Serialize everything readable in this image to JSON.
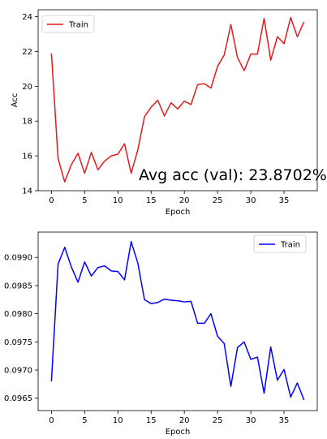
{
  "chart_data": [
    {
      "type": "line",
      "xlabel": "Epoch",
      "ylabel": "Acc",
      "xlim": [
        -2,
        40
      ],
      "ylim": [
        14,
        24.4
      ],
      "xticks": [
        0,
        5,
        10,
        15,
        20,
        25,
        30,
        35
      ],
      "yticks": [
        14,
        16,
        18,
        20,
        22,
        24
      ],
      "ytick_labels": [
        "14",
        "16",
        "18",
        "20",
        "22",
        "24"
      ],
      "legend_position": "top-left",
      "annotation": "Avg acc (val): 23.8702%",
      "series": [
        {
          "name": "Train",
          "color": "#e31a1c",
          "x": [
            0,
            1,
            2,
            3,
            4,
            5,
            6,
            7,
            8,
            9,
            10,
            11,
            12,
            13,
            14,
            15,
            16,
            17,
            18,
            19,
            20,
            21,
            22,
            23,
            24,
            25,
            26,
            27,
            28,
            29,
            30,
            31,
            32,
            33,
            34,
            35,
            36,
            37,
            38
          ],
          "values": [
            21.9,
            15.85,
            14.5,
            15.5,
            16.15,
            15.0,
            16.2,
            15.2,
            15.7,
            16.0,
            16.1,
            16.7,
            15.0,
            16.35,
            18.25,
            18.8,
            19.2,
            18.3,
            19.05,
            18.7,
            19.15,
            18.95,
            20.1,
            20.15,
            19.9,
            21.15,
            21.8,
            23.55,
            21.65,
            20.9,
            21.85,
            21.85,
            23.9,
            21.5,
            22.85,
            22.45,
            23.95,
            22.85,
            23.7
          ]
        }
      ]
    },
    {
      "type": "line",
      "xlabel": "Epoch",
      "ylabel": "",
      "xlim": [
        -2,
        40
      ],
      "ylim": [
        0.09628,
        0.09945
      ],
      "xticks": [
        0,
        5,
        10,
        15,
        20,
        25,
        30,
        35
      ],
      "yticks": [
        0.0965,
        0.097,
        0.0975,
        0.098,
        0.0985,
        0.099
      ],
      "ytick_labels": [
        "0.0965",
        "0.0970",
        "0.0975",
        "0.0980",
        "0.0985",
        "0.0990"
      ],
      "legend_position": "top-right",
      "series": [
        {
          "name": "Train",
          "color": "#0000ff",
          "x": [
            0,
            1,
            2,
            3,
            4,
            5,
            6,
            7,
            8,
            9,
            10,
            11,
            12,
            13,
            14,
            15,
            16,
            17,
            18,
            19,
            20,
            21,
            22,
            23,
            24,
            25,
            26,
            27,
            28,
            29,
            30,
            31,
            32,
            33,
            34,
            35,
            36,
            37,
            38
          ],
          "values": [
            0.0968,
            0.09888,
            0.09918,
            0.09883,
            0.09856,
            0.09892,
            0.09867,
            0.09882,
            0.09885,
            0.09876,
            0.09875,
            0.0986,
            0.09928,
            0.0989,
            0.09825,
            0.09818,
            0.0982,
            0.09826,
            0.09824,
            0.09823,
            0.09821,
            0.09822,
            0.09783,
            0.09783,
            0.098,
            0.0976,
            0.09747,
            0.09671,
            0.0974,
            0.0975,
            0.09719,
            0.09723,
            0.09659,
            0.09741,
            0.09682,
            0.09701,
            0.09652,
            0.09677,
            0.09647
          ]
        }
      ]
    }
  ]
}
